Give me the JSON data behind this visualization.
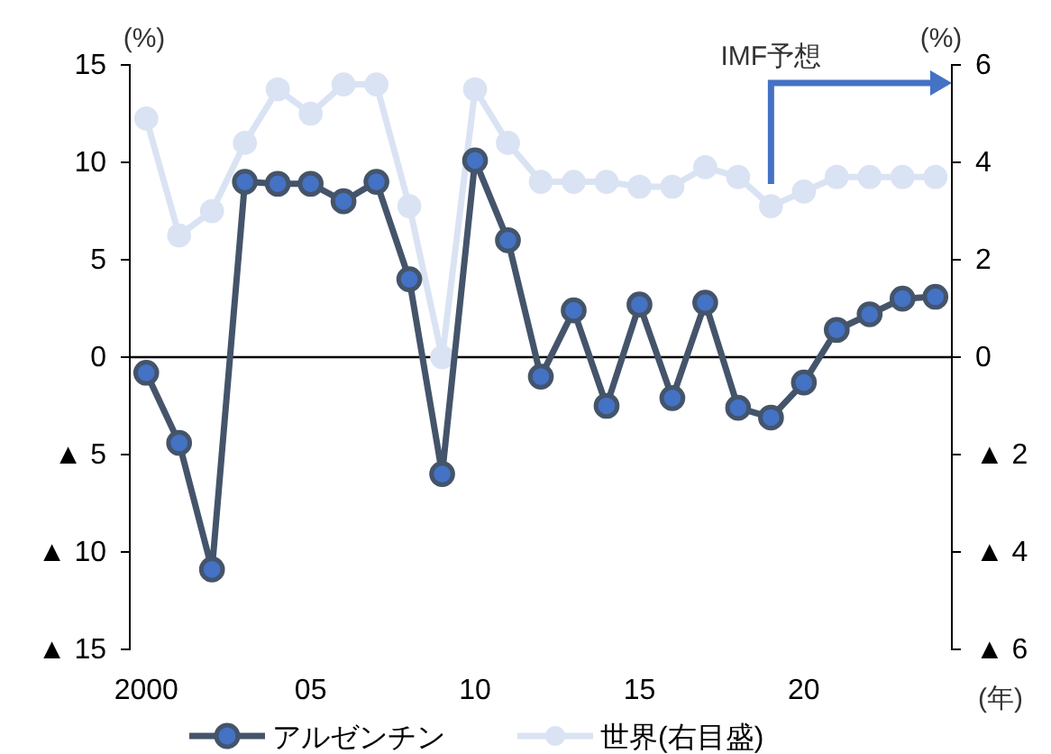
{
  "chart_data": {
    "type": "line",
    "ylabel": "(%)",
    "y2label": "(%)",
    "xlabel": "(年)",
    "x": [
      2000,
      2001,
      2002,
      2003,
      2004,
      2005,
      2006,
      2007,
      2008,
      2009,
      2010,
      2011,
      2012,
      2013,
      2014,
      2015,
      2016,
      2017,
      2018,
      2019,
      2020,
      2021,
      2022,
      2023,
      2024
    ],
    "xlim": [
      1999.5,
      2024.5
    ],
    "xticks": [
      {
        "value": 2000,
        "label": "2000"
      },
      {
        "value": 2005,
        "label": "05"
      },
      {
        "value": 2010,
        "label": "10"
      },
      {
        "value": 2015,
        "label": "15"
      },
      {
        "value": 2020,
        "label": "20"
      }
    ],
    "ylim": [
      -15,
      15
    ],
    "yticks": [
      {
        "value": -15,
        "label": "▲ 15"
      },
      {
        "value": -10,
        "label": "▲ 10"
      },
      {
        "value": -5,
        "label": "▲ 5"
      },
      0,
      5,
      10,
      15
    ],
    "y2lim": [
      -6,
      6
    ],
    "y2ticks": [
      {
        "value": -6,
        "label": "▲ 6"
      },
      {
        "value": -4,
        "label": "▲ 4"
      },
      {
        "value": -2,
        "label": "▲ 2"
      },
      0,
      2,
      4,
      6
    ],
    "series": [
      {
        "name": "アルゼンチン",
        "color": "#44546a",
        "values": [
          -0.8,
          -4.4,
          -10.9,
          9.0,
          8.9,
          8.9,
          8.0,
          9.0,
          4.0,
          -6.0,
          10.1,
          6.0,
          -1.0,
          2.4,
          -2.5,
          2.7,
          -2.1,
          2.8,
          -2.6,
          -3.1,
          -1.3,
          1.4,
          2.2,
          3.0,
          3.1
        ]
      },
      {
        "name": "世界(右目盛)",
        "color": "#dae3f3",
        "axis": "y2",
        "values": [
          4.9,
          2.5,
          3.0,
          4.4,
          5.5,
          5.0,
          5.6,
          5.6,
          3.1,
          0.0,
          5.5,
          4.4,
          3.6,
          3.6,
          3.6,
          3.5,
          3.5,
          3.9,
          3.7,
          3.1,
          3.4,
          3.7,
          3.7,
          3.7,
          3.7
        ]
      }
    ],
    "annotations": [
      "IMF予想"
    ],
    "marker": "circle",
    "legend": "bottom"
  }
}
